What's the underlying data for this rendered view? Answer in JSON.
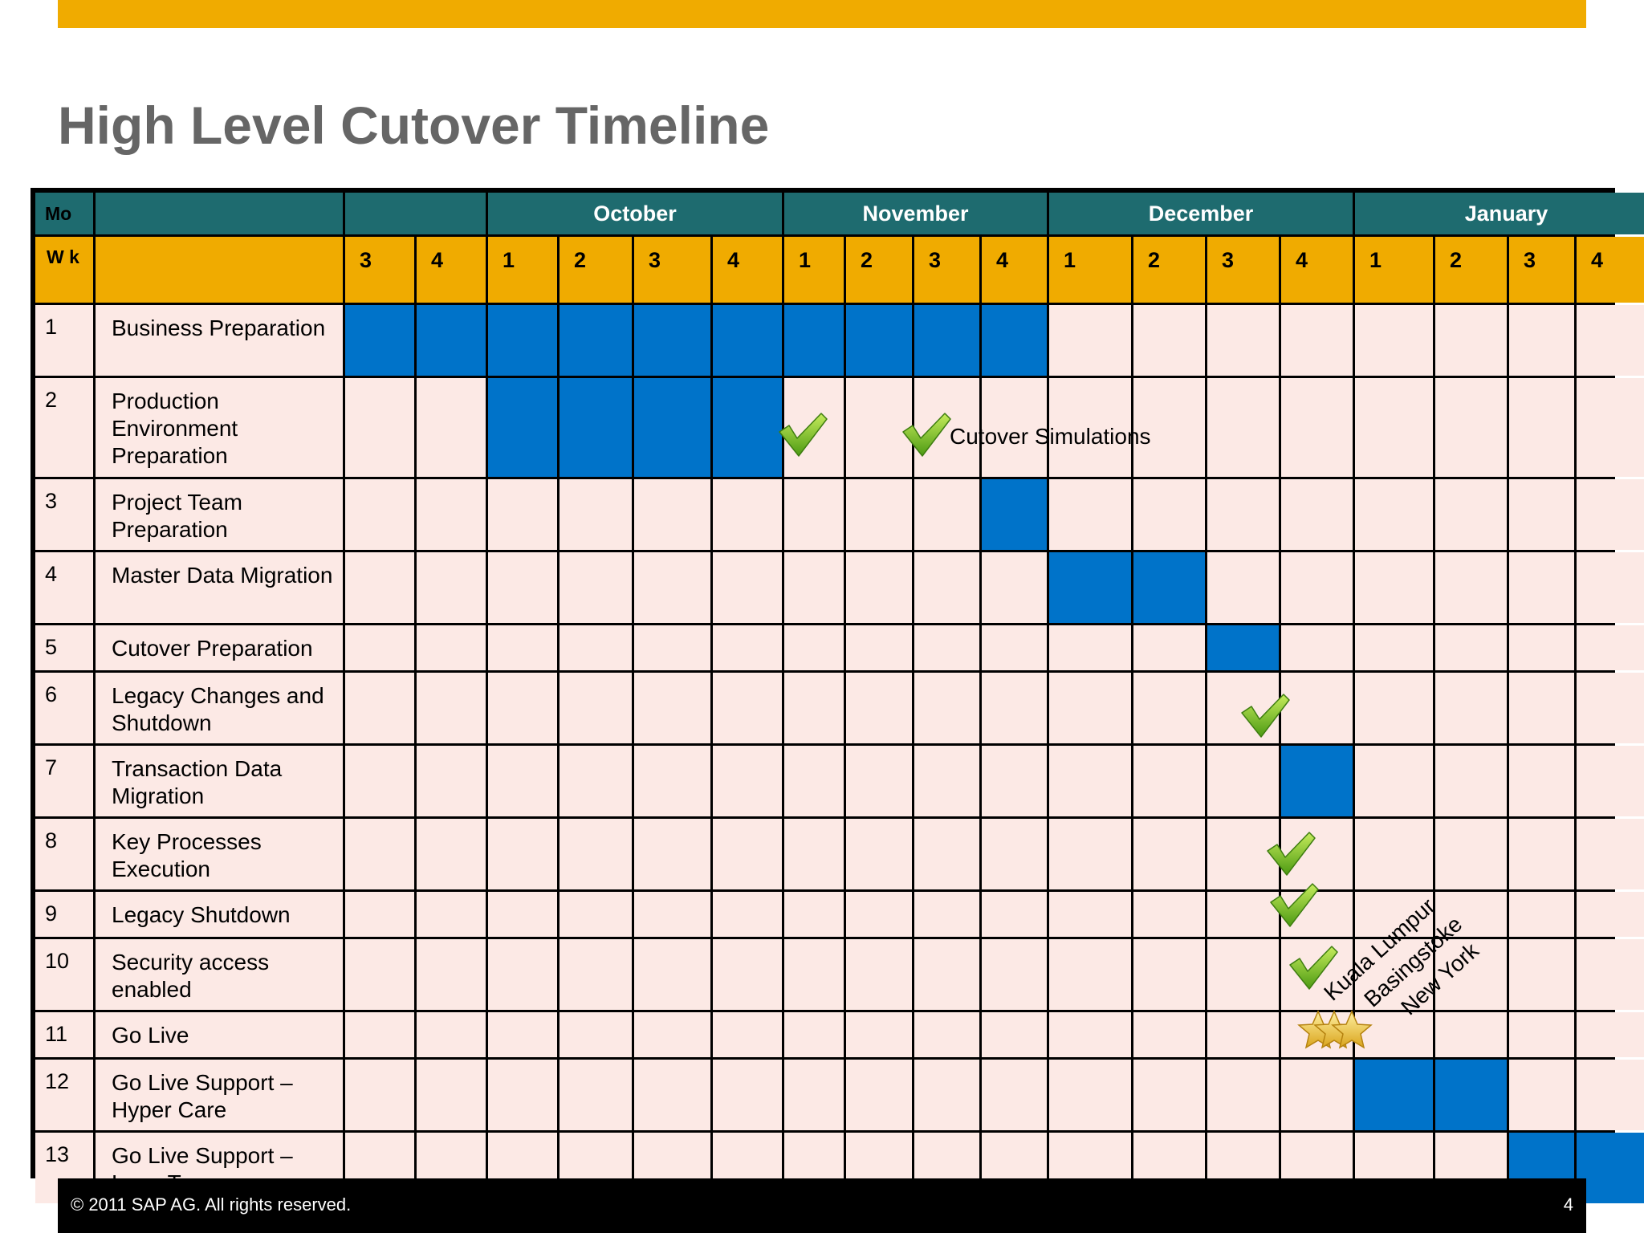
{
  "title": "High Level Cutover Timeline",
  "header": {
    "mo_label": "Mo",
    "wk_label": "W k",
    "months": [
      {
        "label": "",
        "span": 2
      },
      {
        "label": "October",
        "span": 4
      },
      {
        "label": "November",
        "span": 4
      },
      {
        "label": "December",
        "span": 4
      },
      {
        "label": "January",
        "span": 4
      }
    ],
    "weeks": [
      "3",
      "4",
      "1",
      "2",
      "3",
      "4",
      "1",
      "2",
      "3",
      "4",
      "1",
      "2",
      "3",
      "4",
      "1",
      "2",
      "3",
      "4"
    ]
  },
  "tasks": [
    {
      "num": "1",
      "label": "Business Preparation",
      "active": [
        0,
        1,
        2,
        3,
        4,
        5,
        6,
        7,
        8,
        9
      ]
    },
    {
      "num": "2",
      "label": "Production Environment Preparation",
      "active": [
        2,
        3,
        4,
        5
      ]
    },
    {
      "num": "3",
      "label": "Project Team Preparation",
      "active": [
        9
      ]
    },
    {
      "num": "4",
      "label": "Master Data Migration",
      "active": [
        10,
        11
      ]
    },
    {
      "num": "5",
      "label": "Cutover Preparation",
      "active": [
        12
      ]
    },
    {
      "num": "6",
      "label": "Legacy Changes and Shutdown",
      "active": []
    },
    {
      "num": "7",
      "label": "Transaction Data Migration",
      "active": [
        13
      ]
    },
    {
      "num": "8",
      "label": "Key Processes Execution",
      "active": []
    },
    {
      "num": "9",
      "label": "Legacy Shutdown",
      "active": []
    },
    {
      "num": "10",
      "label": "Security access enabled",
      "active": []
    },
    {
      "num": "11",
      "label": "Go Live",
      "active": []
    },
    {
      "num": "12",
      "label": "Go Live Support – Hyper Care",
      "active": [
        14,
        15
      ]
    },
    {
      "num": "13",
      "label": "Go Live Support – Long Term",
      "active": [
        16,
        17
      ]
    }
  ],
  "annotations": {
    "cutover_simulations": "Cutover Simulations",
    "locations": [
      "Kuala Lumpur",
      "Basingstoke",
      "New York"
    ]
  },
  "icons": {
    "checkmark": "checkmark-icon",
    "star": "star-icon"
  },
  "colors": {
    "active": "#0073c9",
    "month_header": "#1e6b6f",
    "week_header": "#f0ab00",
    "cell": "#fce9e5",
    "accent": "#f0ab00"
  },
  "footer": {
    "copyright": "© 2011 SAP AG. All rights reserved.",
    "page": "4"
  }
}
